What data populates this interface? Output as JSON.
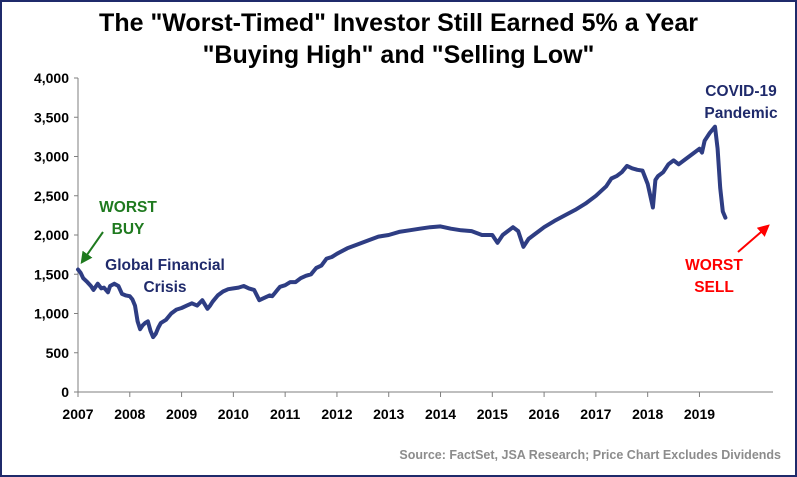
{
  "chart_data": {
    "type": "line",
    "title": "The \"Worst-Timed\" Investor Still Earned 5% a Year",
    "subtitle": "\"Buying High\" and \"Selling Low\"",
    "xlabel": "",
    "ylabel": "",
    "xlim": [
      2007,
      2020.42
    ],
    "ylim": [
      0,
      4000
    ],
    "x_ticks": [
      "2007",
      "2008",
      "2009",
      "2010",
      "2011",
      "2012",
      "2013",
      "2014",
      "2015",
      "2016",
      "2017",
      "2018",
      "2019"
    ],
    "y_ticks": [
      "0",
      "500",
      "1,000",
      "1,500",
      "2,000",
      "2,500",
      "3,000",
      "3,500",
      "4,000"
    ],
    "y_tick_values": [
      0,
      500,
      1000,
      1500,
      2000,
      2500,
      3000,
      3500,
      4000
    ],
    "grid": false,
    "line_color": "#2e3d83",
    "series": [
      {
        "x": [
          2007.0,
          2007.05,
          2007.1,
          2007.18,
          2007.25,
          2007.3,
          2007.38,
          2007.45,
          2007.5,
          2007.58,
          2007.62,
          2007.7,
          2007.78,
          2007.85,
          2007.92,
          2008.0,
          2008.05,
          2008.1,
          2008.15,
          2008.2,
          2008.25,
          2008.3,
          2008.35,
          2008.4,
          2008.45,
          2008.5,
          2008.55,
          2008.6,
          2008.7,
          2008.8,
          2008.9,
          2009.0,
          2009.1,
          2009.2,
          2009.3,
          2009.4,
          2009.5,
          2009.55,
          2009.6,
          2009.7,
          2009.8,
          2009.9,
          2010.0,
          2010.1,
          2010.2,
          2010.3,
          2010.4,
          2010.5,
          2010.6,
          2010.7,
          2010.75,
          2010.8,
          2010.85,
          2010.9,
          2011.0,
          2011.1,
          2011.2,
          2011.3,
          2011.4,
          2011.5,
          2011.6,
          2011.7,
          2011.8,
          2011.9,
          2012.0,
          2012.2,
          2012.4,
          2012.6,
          2012.8,
          2013.0,
          2013.2,
          2013.4,
          2013.6,
          2013.8,
          2014.0,
          2014.2,
          2014.4,
          2014.6,
          2014.8,
          2015.0,
          2015.1,
          2015.2,
          2015.3,
          2015.4,
          2015.5,
          2015.6,
          2015.7,
          2015.8,
          2015.9,
          2016.0,
          2016.2,
          2016.4,
          2016.6,
          2016.8,
          2017.0,
          2017.2,
          2017.3,
          2017.4,
          2017.5,
          2017.6,
          2017.7,
          2017.8,
          2017.9,
          2018.0,
          2018.1,
          2018.15,
          2018.2,
          2018.3,
          2018.4,
          2018.5,
          2018.6,
          2018.7,
          2018.8,
          2018.9,
          2019.0,
          2019.05,
          2019.1,
          2019.2,
          2019.3,
          2019.35,
          2019.4,
          2019.45,
          2019.5
        ],
        "y": [
          1560,
          1520,
          1450,
          1400,
          1350,
          1300,
          1380,
          1320,
          1330,
          1270,
          1350,
          1380,
          1350,
          1250,
          1230,
          1220,
          1180,
          1100,
          900,
          800,
          850,
          880,
          900,
          780,
          700,
          740,
          820,
          880,
          920,
          1000,
          1050,
          1070,
          1100,
          1130,
          1100,
          1170,
          1060,
          1100,
          1150,
          1230,
          1280,
          1310,
          1320,
          1330,
          1350,
          1320,
          1300,
          1170,
          1200,
          1230,
          1220,
          1260,
          1300,
          1340,
          1360,
          1400,
          1400,
          1450,
          1480,
          1500,
          1580,
          1610,
          1700,
          1720,
          1760,
          1830,
          1880,
          1930,
          1980,
          2000,
          2040,
          2060,
          2080,
          2100,
          2110,
          2080,
          2060,
          2050,
          2000,
          2000,
          1900,
          2000,
          2050,
          2100,
          2050,
          1850,
          1950,
          2000,
          2050,
          2100,
          2180,
          2250,
          2320,
          2400,
          2500,
          2620,
          2720,
          2750,
          2800,
          2880,
          2850,
          2830,
          2820,
          2650,
          2350,
          2700,
          2750,
          2800,
          2900,
          2950,
          2900,
          2950,
          3000,
          3050,
          3100,
          3050,
          3200,
          3300,
          3380,
          3100,
          2600,
          2300,
          2220
        ]
      }
    ],
    "annotations": [
      {
        "text": "WORST",
        "color": "#1f7a1f"
      },
      {
        "text": "BUY",
        "color": "#1f7a1f"
      },
      {
        "text": "Global Financial",
        "color": "#1f2a6b"
      },
      {
        "text": "Crisis",
        "color": "#1f2a6b"
      },
      {
        "text": "COVID-19",
        "color": "#1f2a6b"
      },
      {
        "text": "Pandemic",
        "color": "#1f2a6b"
      },
      {
        "text": "WORST",
        "color": "#ff0000"
      },
      {
        "text": "SELL",
        "color": "#ff0000"
      }
    ],
    "source": "Source: FactSet, JSA Research; Price Chart Excludes Dividends"
  }
}
